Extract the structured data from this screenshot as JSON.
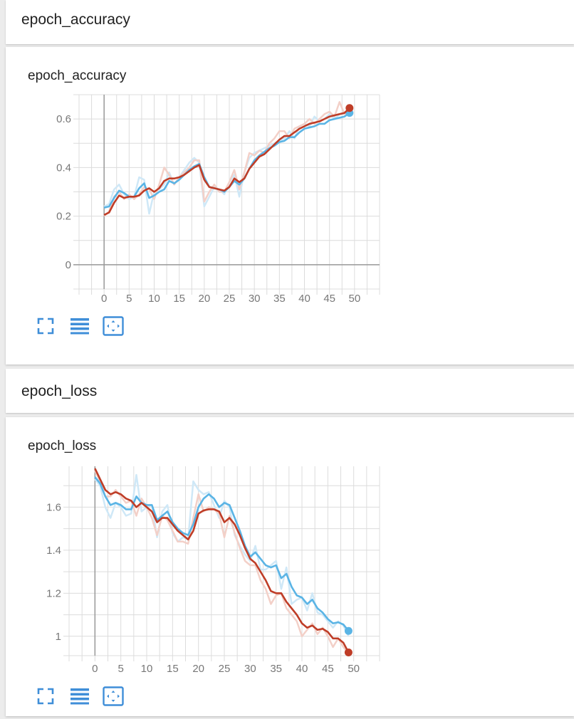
{
  "sections": [
    {
      "header": "epoch_accuracy"
    },
    {
      "header": "epoch_loss"
    }
  ],
  "colors": {
    "blue": "#5ab4e5",
    "orange": "#bf3d27",
    "blue_raw": "#cfe8f7",
    "orange_raw": "#f3d0c8",
    "grid": "#dcdcdc",
    "axis": "#999999",
    "toolbar_icon": "#3f8ed8"
  },
  "toolbar_icons": [
    "fullscreen-icon",
    "list-icon",
    "fit-domain-icon"
  ],
  "chart_data": [
    {
      "type": "line",
      "title": "epoch_accuracy",
      "xlabel": "",
      "ylabel": "",
      "x_ticks": [
        0,
        5,
        10,
        15,
        20,
        25,
        30,
        35,
        40,
        45,
        50
      ],
      "y_ticks": [
        0,
        0.2,
        0.4,
        0.6
      ],
      "y_tick_labels": [
        "0",
        "0.2",
        "0.4",
        "0.6"
      ],
      "xlim": [
        -5,
        55
      ],
      "ylim": [
        -0.1,
        0.7
      ],
      "grid": true,
      "legend": "none",
      "x": [
        0,
        1,
        2,
        3,
        4,
        5,
        6,
        7,
        8,
        9,
        10,
        11,
        12,
        13,
        14,
        15,
        16,
        17,
        18,
        19,
        20,
        21,
        22,
        23,
        24,
        25,
        26,
        27,
        28,
        29,
        30,
        31,
        32,
        33,
        34,
        35,
        36,
        37,
        38,
        39,
        40,
        41,
        42,
        43,
        44,
        45,
        46,
        47,
        48,
        49
      ],
      "series": [
        {
          "color": "#5ab4e5",
          "smoothed": [
            0.235,
            0.24,
            0.275,
            0.305,
            0.295,
            0.28,
            0.28,
            0.315,
            0.335,
            0.275,
            0.285,
            0.3,
            0.31,
            0.345,
            0.335,
            0.35,
            0.37,
            0.39,
            0.405,
            0.415,
            0.36,
            0.32,
            0.315,
            0.31,
            0.3,
            0.32,
            0.345,
            0.33,
            0.355,
            0.395,
            0.43,
            0.45,
            0.465,
            0.48,
            0.49,
            0.505,
            0.51,
            0.525,
            0.525,
            0.545,
            0.56,
            0.565,
            0.57,
            0.58,
            0.58,
            0.595,
            0.6,
            0.605,
            0.61,
            0.625
          ],
          "raw": [
            0.24,
            0.25,
            0.31,
            0.33,
            0.29,
            0.27,
            0.28,
            0.36,
            0.35,
            0.21,
            0.3,
            0.31,
            0.33,
            0.38,
            0.33,
            0.36,
            0.39,
            0.42,
            0.44,
            0.42,
            0.24,
            0.28,
            0.32,
            0.31,
            0.29,
            0.34,
            0.37,
            0.28,
            0.38,
            0.44,
            0.46,
            0.47,
            0.48,
            0.49,
            0.5,
            0.51,
            0.52,
            0.55,
            0.52,
            0.57,
            0.58,
            0.57,
            0.61,
            0.59,
            0.6,
            0.62,
            0.6,
            0.62,
            0.62,
            0.63
          ]
        },
        {
          "color": "#bf3d27",
          "smoothed": [
            0.205,
            0.215,
            0.255,
            0.285,
            0.275,
            0.28,
            0.28,
            0.285,
            0.305,
            0.315,
            0.3,
            0.315,
            0.345,
            0.355,
            0.355,
            0.36,
            0.37,
            0.385,
            0.4,
            0.41,
            0.35,
            0.32,
            0.315,
            0.31,
            0.305,
            0.32,
            0.355,
            0.34,
            0.355,
            0.395,
            0.42,
            0.445,
            0.455,
            0.475,
            0.495,
            0.515,
            0.53,
            0.53,
            0.545,
            0.56,
            0.57,
            0.58,
            0.585,
            0.59,
            0.6,
            0.61,
            0.615,
            0.62,
            0.625,
            0.645
          ],
          "raw": [
            0.2,
            0.22,
            0.28,
            0.3,
            0.27,
            0.29,
            0.27,
            0.29,
            0.32,
            0.31,
            0.27,
            0.33,
            0.4,
            0.37,
            0.33,
            0.36,
            0.38,
            0.4,
            0.43,
            0.43,
            0.26,
            0.3,
            0.33,
            0.3,
            0.3,
            0.34,
            0.39,
            0.31,
            0.38,
            0.46,
            0.45,
            0.47,
            0.46,
            0.5,
            0.52,
            0.55,
            0.55,
            0.52,
            0.56,
            0.57,
            0.58,
            0.6,
            0.58,
            0.6,
            0.62,
            0.63,
            0.61,
            0.67,
            0.62,
            0.65
          ]
        }
      ]
    },
    {
      "type": "line",
      "title": "epoch_loss",
      "xlabel": "",
      "ylabel": "",
      "x_ticks": [
        0,
        5,
        10,
        15,
        20,
        25,
        30,
        35,
        40,
        45,
        50
      ],
      "y_ticks": [
        1,
        1.2,
        1.4,
        1.6
      ],
      "y_tick_labels": [
        "1",
        "1.2",
        "1.4",
        "1.6"
      ],
      "xlim": [
        -5,
        55
      ],
      "ylim": [
        0.91,
        1.79
      ],
      "grid": true,
      "legend": "none",
      "x": [
        0,
        1,
        2,
        3,
        4,
        5,
        6,
        7,
        8,
        9,
        10,
        11,
        12,
        13,
        14,
        15,
        16,
        17,
        18,
        19,
        20,
        21,
        22,
        23,
        24,
        25,
        26,
        27,
        28,
        29,
        30,
        31,
        32,
        33,
        34,
        35,
        36,
        37,
        38,
        39,
        40,
        41,
        42,
        43,
        44,
        45,
        46,
        47,
        48,
        49
      ],
      "series": [
        {
          "color": "#5ab4e5",
          "smoothed": [
            1.74,
            1.71,
            1.65,
            1.61,
            1.62,
            1.61,
            1.59,
            1.59,
            1.65,
            1.62,
            1.61,
            1.61,
            1.54,
            1.56,
            1.58,
            1.53,
            1.5,
            1.48,
            1.47,
            1.52,
            1.6,
            1.64,
            1.66,
            1.64,
            1.6,
            1.62,
            1.61,
            1.55,
            1.49,
            1.42,
            1.37,
            1.39,
            1.36,
            1.33,
            1.32,
            1.33,
            1.27,
            1.29,
            1.23,
            1.19,
            1.18,
            1.15,
            1.17,
            1.13,
            1.11,
            1.08,
            1.06,
            1.065,
            1.055,
            1.025
          ],
          "raw": [
            1.73,
            1.7,
            1.6,
            1.55,
            1.62,
            1.6,
            1.56,
            1.57,
            1.75,
            1.58,
            1.6,
            1.61,
            1.46,
            1.58,
            1.61,
            1.48,
            1.44,
            1.46,
            1.45,
            1.72,
            1.68,
            1.66,
            1.67,
            1.61,
            1.55,
            1.63,
            1.6,
            1.47,
            1.42,
            1.38,
            1.35,
            1.42,
            1.31,
            1.31,
            1.33,
            1.35,
            1.22,
            1.32,
            1.15,
            1.17,
            1.18,
            1.12,
            1.2,
            1.11,
            1.1,
            1.07,
            1.04,
            1.07,
            1.05,
            1.0
          ]
        },
        {
          "color": "#bf3d27",
          "smoothed": [
            1.78,
            1.73,
            1.68,
            1.66,
            1.67,
            1.66,
            1.64,
            1.63,
            1.6,
            1.62,
            1.6,
            1.58,
            1.53,
            1.55,
            1.55,
            1.52,
            1.49,
            1.47,
            1.45,
            1.49,
            1.57,
            1.585,
            1.59,
            1.59,
            1.58,
            1.53,
            1.55,
            1.52,
            1.47,
            1.41,
            1.36,
            1.34,
            1.3,
            1.26,
            1.21,
            1.2,
            1.2,
            1.16,
            1.13,
            1.1,
            1.06,
            1.04,
            1.05,
            1.03,
            1.035,
            1.02,
            0.99,
            0.99,
            0.97,
            0.925
          ],
          "raw": [
            1.77,
            1.72,
            1.65,
            1.65,
            1.68,
            1.65,
            1.62,
            1.63,
            1.56,
            1.64,
            1.6,
            1.55,
            1.47,
            1.56,
            1.54,
            1.49,
            1.44,
            1.44,
            1.43,
            1.55,
            1.66,
            1.58,
            1.6,
            1.59,
            1.57,
            1.46,
            1.56,
            1.48,
            1.41,
            1.35,
            1.33,
            1.33,
            1.26,
            1.22,
            1.15,
            1.19,
            1.2,
            1.13,
            1.1,
            1.07,
            1.0,
            1.03,
            1.06,
            1.01,
            1.04,
            1.0,
            0.95,
            0.99,
            0.95,
            0.92
          ]
        }
      ]
    }
  ]
}
